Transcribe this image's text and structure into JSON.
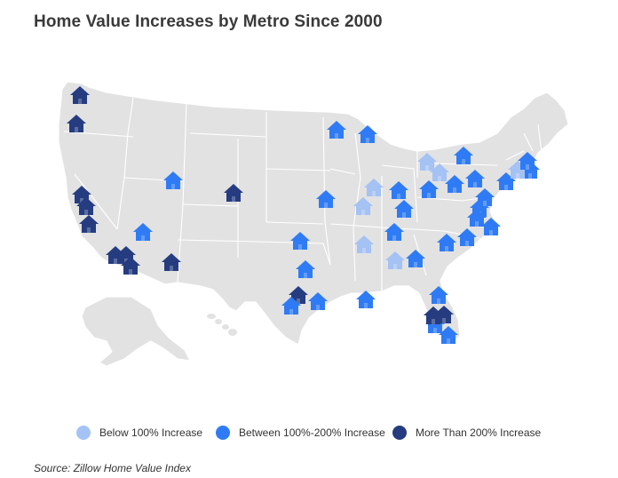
{
  "title": "Home Value Increases by Metro Since 2000",
  "source": "Source: Zillow Home Value Index",
  "colors": {
    "low": "#a4c2f4",
    "mid": "#2f7bf5",
    "high": "#253c80",
    "land": "#e2e2e2",
    "border": "#ffffff"
  },
  "legend": [
    {
      "category": "low",
      "label": "Below 100% Increase"
    },
    {
      "category": "mid",
      "label": "Between 100%-200% Increase"
    },
    {
      "category": "high",
      "label": "More Than 200% Increase"
    }
  ],
  "markers": [
    {
      "region": "Seattle area",
      "category": "high"
    },
    {
      "region": "Portland area",
      "category": "high"
    },
    {
      "region": "Bay Area 1",
      "category": "high"
    },
    {
      "region": "Bay Area 2",
      "category": "high"
    },
    {
      "region": "Central California",
      "category": "high"
    },
    {
      "region": "Los Angeles",
      "category": "high"
    },
    {
      "region": "Riverside",
      "category": "high"
    },
    {
      "region": "San Diego",
      "category": "high"
    },
    {
      "region": "Phoenix",
      "category": "high"
    },
    {
      "region": "Las Vegas",
      "category": "mid"
    },
    {
      "region": "Salt Lake City",
      "category": "mid"
    },
    {
      "region": "Denver",
      "category": "high"
    },
    {
      "region": "Minneapolis",
      "category": "mid"
    },
    {
      "region": "Milwaukee",
      "category": "mid"
    },
    {
      "region": "Kansas City",
      "category": "mid"
    },
    {
      "region": "Oklahoma City",
      "category": "mid"
    },
    {
      "region": "Dallas",
      "category": "mid"
    },
    {
      "region": "Austin",
      "category": "high"
    },
    {
      "region": "San Antonio",
      "category": "mid"
    },
    {
      "region": "Houston",
      "category": "mid"
    },
    {
      "region": "New Orleans",
      "category": "mid"
    },
    {
      "region": "St. Louis",
      "category": "low"
    },
    {
      "region": "Chicago",
      "category": "low"
    },
    {
      "region": "Memphis",
      "category": "low"
    },
    {
      "region": "Birmingham",
      "category": "low"
    },
    {
      "region": "Indianapolis",
      "category": "mid"
    },
    {
      "region": "Louisville",
      "category": "mid"
    },
    {
      "region": "Nashville",
      "category": "mid"
    },
    {
      "region": "Atlanta",
      "category": "mid"
    },
    {
      "region": "Detroit",
      "category": "low"
    },
    {
      "region": "Cleveland",
      "category": "low"
    },
    {
      "region": "Columbus",
      "category": "mid"
    },
    {
      "region": "Pittsburgh",
      "category": "mid"
    },
    {
      "region": "Buffalo",
      "category": "mid"
    },
    {
      "region": "Rochester",
      "category": "mid"
    },
    {
      "region": "Harrisburg",
      "category": "mid"
    },
    {
      "region": "Washington DC",
      "category": "mid"
    },
    {
      "region": "Baltimore",
      "category": "mid"
    },
    {
      "region": "Richmond",
      "category": "mid"
    },
    {
      "region": "Virginia Beach",
      "category": "mid"
    },
    {
      "region": "Raleigh",
      "category": "mid"
    },
    {
      "region": "Charlotte",
      "category": "mid"
    },
    {
      "region": "Columbia SC",
      "category": "mid"
    },
    {
      "region": "New York",
      "category": "mid"
    },
    {
      "region": "Hartford",
      "category": "low"
    },
    {
      "region": "Boston",
      "category": "mid"
    },
    {
      "region": "Providence",
      "category": "high"
    },
    {
      "region": "Jacksonville",
      "category": "mid"
    },
    {
      "region": "Orlando",
      "category": "mid"
    },
    {
      "region": "Tampa",
      "category": "high"
    },
    {
      "region": "Miami",
      "category": "high"
    }
  ]
}
